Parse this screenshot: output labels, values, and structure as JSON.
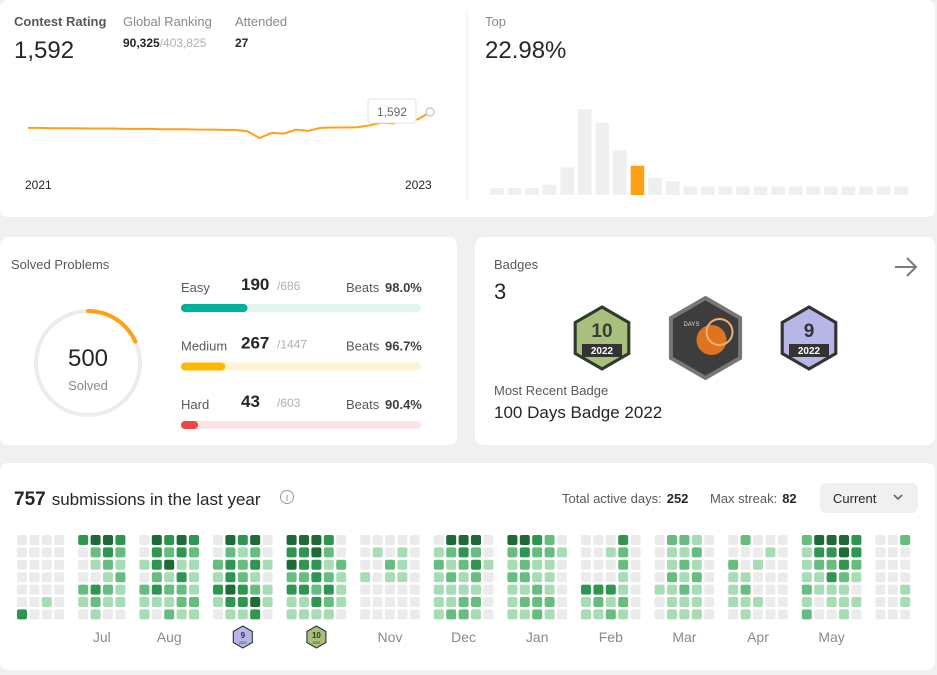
{
  "contest": {
    "rating_label": "Contest Rating",
    "rating": "1,592",
    "ranking_label": "Global Ranking",
    "ranking": "90,325",
    "ranking_total": "/403,825",
    "attended_label": "Attended",
    "attended": "27",
    "start_label": "2021",
    "end_label": "2023",
    "tooltip": "1,592",
    "color": "#ffa116",
    "history": [
      1545,
      1545,
      1544,
      1544,
      1544,
      1543,
      1543,
      1543,
      1542,
      1542,
      1542,
      1541,
      1541,
      1541,
      1540,
      1540,
      1539,
      1539,
      1535,
      1515,
      1530,
      1528,
      1540,
      1536,
      1545,
      1546,
      1546,
      1547,
      1552,
      1560,
      1558,
      1575,
      1570,
      1592
    ]
  },
  "top": {
    "label": "Top",
    "value": "22.98%",
    "distribution": [
      4,
      4,
      4,
      6,
      16,
      50,
      42,
      26,
      17,
      10,
      8,
      5,
      5,
      5,
      5,
      5,
      5,
      5,
      5,
      5,
      5,
      5,
      5,
      5
    ],
    "highlight": 8,
    "color": "#ffa116",
    "base_color": "#eeeff1"
  },
  "solved": {
    "title": "Solved Problems",
    "total": 500,
    "total_label": "Solved",
    "color": "#ffa116",
    "rows": [
      {
        "label": "Easy",
        "solved": 190,
        "total": {
          "value": 686,
          "label": "/686"
        },
        "beats_label": "Beats",
        "beats": "98.0%",
        "color": "#00af9b",
        "track": "#dff5ee"
      },
      {
        "label": "Medium",
        "solved": 267,
        "total": {
          "value": 1447,
          "label": "/1447"
        },
        "beats_label": "Beats",
        "beats": "96.7%",
        "color": "#ffb800",
        "track": "#fff3d6"
      },
      {
        "label": "Hard",
        "solved": 43,
        "total": {
          "value": 603,
          "label": "/603"
        },
        "beats_label": "Beats",
        "beats": "90.4%",
        "color": "#ef4743",
        "track": "#fde3e3"
      }
    ]
  },
  "badges": {
    "title": "Badges",
    "count": "3",
    "items": [
      {
        "number": "10",
        "year": "2022"
      },
      {
        "number": "DAYS"
      },
      {
        "number": "9",
        "year": "2022"
      }
    ],
    "recent_label": "Most Recent Badge",
    "recent": "100 Days Badge 2022"
  },
  "heatmap": {
    "count": "757",
    "text": "submissions in the last year",
    "active_label": "Total active days:",
    "active": "252",
    "streak_label": "Max streak:",
    "streak": "82",
    "dropdown": "Current",
    "colors": [
      "#ebebeb",
      "#a7dcb4",
      "#66bd7e",
      "#2f9650",
      "#1e6b36"
    ],
    "months": [
      {
        "label": null,
        "weeks": [
          [
            0,
            0,
            0,
            0,
            0,
            0,
            3
          ],
          [
            0,
            0,
            0,
            0,
            0,
            0,
            0
          ],
          [
            0,
            0,
            0,
            0,
            0,
            1,
            0
          ],
          [
            0,
            0,
            0,
            0,
            0,
            0,
            0
          ]
        ]
      },
      {
        "label": "Jul",
        "weeks": [
          [
            3,
            0,
            0,
            0,
            2,
            1,
            0
          ],
          [
            4,
            2,
            1,
            0,
            3,
            2,
            1
          ],
          [
            4,
            3,
            2,
            1,
            2,
            1,
            0
          ],
          [
            3,
            2,
            1,
            2,
            1,
            1,
            0
          ]
        ]
      },
      {
        "label": "Aug",
        "weeks": [
          [
            0,
            0,
            1,
            0,
            2,
            1,
            1
          ],
          [
            4,
            3,
            3,
            2,
            3,
            1,
            0
          ],
          [
            3,
            2,
            4,
            1,
            2,
            1,
            2
          ],
          [
            4,
            3,
            1,
            3,
            2,
            2,
            1
          ],
          [
            3,
            2,
            1,
            1,
            1,
            2,
            1
          ]
        ]
      },
      {
        "label": null,
        "badge": {
          "number": "9",
          "year": "2022"
        },
        "weeks": [
          [
            0,
            0,
            2,
            1,
            3,
            1,
            0
          ],
          [
            4,
            2,
            3,
            3,
            4,
            3,
            1
          ],
          [
            3,
            1,
            2,
            2,
            3,
            3,
            1
          ],
          [
            4,
            2,
            3,
            1,
            2,
            4,
            3
          ],
          [
            0,
            0,
            1,
            0,
            1,
            1,
            0
          ]
        ]
      },
      {
        "label": null,
        "badge": {
          "number": "10",
          "year": "2022"
        },
        "weeks": [
          [
            4,
            3,
            4,
            2,
            3,
            1,
            1
          ],
          [
            4,
            3,
            3,
            2,
            3,
            1,
            1
          ],
          [
            4,
            4,
            3,
            3,
            2,
            3,
            1
          ],
          [
            3,
            2,
            1,
            2,
            3,
            2,
            1
          ],
          [
            0,
            0,
            2,
            1,
            1,
            1,
            0
          ]
        ]
      },
      {
        "label": "Nov",
        "weeks": [
          [
            0,
            0,
            0,
            1,
            0,
            0,
            0
          ],
          [
            0,
            1,
            0,
            0,
            0,
            0,
            0
          ],
          [
            0,
            0,
            2,
            1,
            0,
            0,
            0
          ],
          [
            0,
            1,
            1,
            1,
            0,
            0,
            0
          ],
          [
            0,
            0,
            0,
            0,
            0,
            0,
            0
          ]
        ]
      },
      {
        "label": "Dec",
        "weeks": [
          [
            0,
            1,
            2,
            1,
            1,
            1,
            1
          ],
          [
            4,
            2,
            1,
            2,
            1,
            1,
            2
          ],
          [
            4,
            3,
            2,
            1,
            1,
            2,
            2
          ],
          [
            4,
            2,
            3,
            2,
            1,
            2,
            1
          ],
          [
            0,
            0,
            1,
            0,
            0,
            0,
            0
          ]
        ]
      },
      {
        "label": "Jan",
        "weeks": [
          [
            4,
            2,
            1,
            2,
            1,
            1,
            1
          ],
          [
            4,
            3,
            2,
            2,
            1,
            2,
            1
          ],
          [
            3,
            2,
            1,
            1,
            2,
            2,
            2
          ],
          [
            2,
            2,
            1,
            1,
            1,
            2,
            1
          ],
          [
            0,
            1,
            0,
            0,
            0,
            0,
            0
          ]
        ]
      },
      {
        "label": "Feb",
        "weeks": [
          [
            0,
            0,
            0,
            0,
            3,
            1,
            1
          ],
          [
            0,
            0,
            0,
            0,
            3,
            2,
            1
          ],
          [
            0,
            1,
            0,
            0,
            3,
            1,
            2
          ],
          [
            3,
            2,
            2,
            1,
            1,
            2,
            1
          ],
          [
            0,
            0,
            0,
            0,
            0,
            0,
            0
          ]
        ]
      },
      {
        "label": "Mar",
        "weeks": [
          [
            0,
            0,
            0,
            0,
            1,
            0,
            0
          ],
          [
            2,
            1,
            1,
            2,
            1,
            1,
            1
          ],
          [
            2,
            1,
            2,
            1,
            2,
            1,
            1
          ],
          [
            1,
            2,
            1,
            2,
            1,
            1,
            1
          ],
          [
            0,
            0,
            0,
            0,
            0,
            0,
            0
          ]
        ]
      },
      {
        "label": "Apr",
        "weeks": [
          [
            0,
            0,
            2,
            1,
            1,
            1,
            0
          ],
          [
            2,
            0,
            0,
            1,
            2,
            1,
            1
          ],
          [
            0,
            0,
            1,
            0,
            0,
            1,
            0
          ],
          [
            0,
            1,
            0,
            0,
            0,
            0,
            0
          ],
          [
            0,
            0,
            0,
            0,
            0,
            0,
            0
          ]
        ]
      },
      {
        "label": "May",
        "weeks": [
          [
            2,
            1,
            1,
            1,
            2,
            1,
            2
          ],
          [
            4,
            3,
            2,
            1,
            1,
            0,
            0
          ],
          [
            4,
            3,
            2,
            3,
            1,
            1,
            0
          ],
          [
            4,
            4,
            3,
            2,
            1,
            1,
            1
          ],
          [
            3,
            3,
            2,
            1,
            0,
            1,
            0
          ]
        ]
      },
      {
        "label": null,
        "weeks": [
          [
            0,
            0,
            0,
            0,
            0,
            0,
            0
          ],
          [
            0,
            0,
            0,
            0,
            0,
            0,
            0
          ],
          [
            2,
            0,
            0,
            0,
            1,
            1,
            0
          ]
        ]
      }
    ]
  }
}
